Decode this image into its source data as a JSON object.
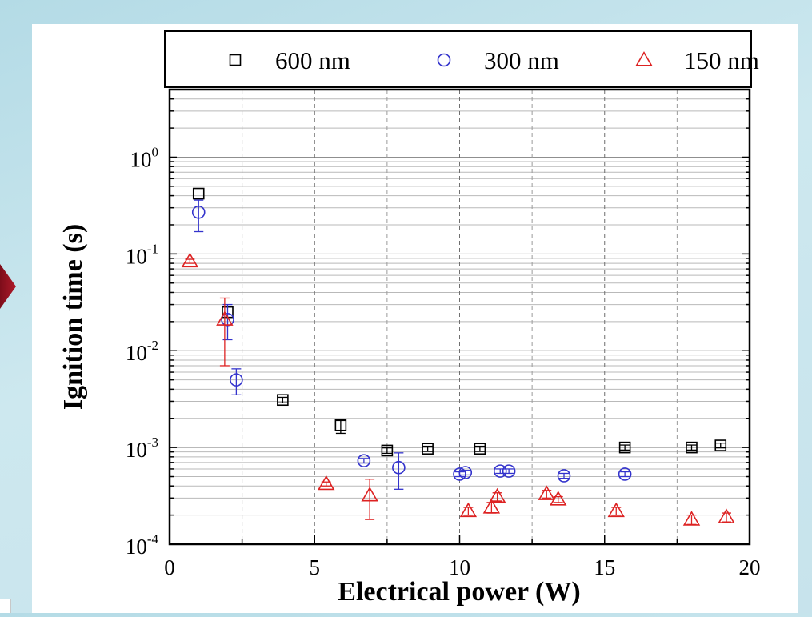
{
  "chart_data": {
    "type": "scatter",
    "xlabel": "Electrical power (W)",
    "ylabel": "Ignition time (s)",
    "xlim": [
      0,
      20
    ],
    "ylim": [
      0.0001,
      5
    ],
    "yscale": "log",
    "xticks": [
      "0",
      "5",
      "10",
      "15",
      "20"
    ],
    "yticks": [
      {
        "base": "10",
        "exp": "-4"
      },
      {
        "base": "10",
        "exp": "-3"
      },
      {
        "base": "10",
        "exp": "-2"
      },
      {
        "base": "10",
        "exp": "-1"
      },
      {
        "base": "10",
        "exp": "0"
      }
    ],
    "grid": true,
    "legend_position": "top",
    "series": [
      {
        "name": "600 nm",
        "marker": "square",
        "color": "#000000",
        "points": [
          {
            "x": 1.0,
            "y": 0.42,
            "lo": 0.42,
            "hi": 0.42
          },
          {
            "x": 2.0,
            "y": 0.025,
            "lo": 0.025,
            "hi": 0.025
          },
          {
            "x": 3.9,
            "y": 0.0031,
            "lo": 0.0029,
            "hi": 0.0033
          },
          {
            "x": 5.9,
            "y": 0.0017,
            "lo": 0.0014,
            "hi": 0.0019
          },
          {
            "x": 7.5,
            "y": 0.00093,
            "lo": 0.00087,
            "hi": 0.00099
          },
          {
            "x": 8.9,
            "y": 0.00097,
            "lo": 0.00091,
            "hi": 0.00103
          },
          {
            "x": 10.7,
            "y": 0.00097,
            "lo": 0.00091,
            "hi": 0.00103
          },
          {
            "x": 15.7,
            "y": 0.001,
            "lo": 0.00094,
            "hi": 0.00106
          },
          {
            "x": 18.0,
            "y": 0.001,
            "lo": 0.00094,
            "hi": 0.00106
          },
          {
            "x": 19.0,
            "y": 0.00105,
            "lo": 0.00099,
            "hi": 0.00111
          }
        ]
      },
      {
        "name": "300 nm",
        "marker": "circle",
        "color": "#3333cc",
        "points": [
          {
            "x": 1.0,
            "y": 0.27,
            "lo": 0.17,
            "hi": 0.36
          },
          {
            "x": 2.0,
            "y": 0.021,
            "lo": 0.013,
            "hi": 0.03
          },
          {
            "x": 2.3,
            "y": 0.005,
            "lo": 0.0035,
            "hi": 0.0065
          },
          {
            "x": 6.7,
            "y": 0.00073,
            "lo": 0.00069,
            "hi": 0.00077
          },
          {
            "x": 7.9,
            "y": 0.00062,
            "lo": 0.00037,
            "hi": 0.00088
          },
          {
            "x": 10.0,
            "y": 0.00053,
            "lo": 0.0005,
            "hi": 0.00056
          },
          {
            "x": 10.2,
            "y": 0.00055,
            "lo": 0.00052,
            "hi": 0.00058
          },
          {
            "x": 11.4,
            "y": 0.00057,
            "lo": 0.00054,
            "hi": 0.0006
          },
          {
            "x": 11.7,
            "y": 0.00057,
            "lo": 0.00054,
            "hi": 0.0006
          },
          {
            "x": 13.6,
            "y": 0.00051,
            "lo": 0.00048,
            "hi": 0.00054
          },
          {
            "x": 15.7,
            "y": 0.00053,
            "lo": 0.0005,
            "hi": 0.00056
          }
        ]
      },
      {
        "name": "150 nm",
        "marker": "triangle",
        "color": "#dd2222",
        "points": [
          {
            "x": 0.7,
            "y": 0.084,
            "lo": 0.08,
            "hi": 0.088
          },
          {
            "x": 1.9,
            "y": 0.021,
            "lo": 0.007,
            "hi": 0.035
          },
          {
            "x": 5.4,
            "y": 0.00042,
            "lo": 0.0004,
            "hi": 0.00044
          },
          {
            "x": 6.9,
            "y": 0.00032,
            "lo": 0.00018,
            "hi": 0.00047
          },
          {
            "x": 10.3,
            "y": 0.00022,
            "lo": 0.0002,
            "hi": 0.00024
          },
          {
            "x": 11.1,
            "y": 0.00024,
            "lo": 0.00021,
            "hi": 0.00027
          },
          {
            "x": 11.3,
            "y": 0.00031,
            "lo": 0.00028,
            "hi": 0.00034
          },
          {
            "x": 13.0,
            "y": 0.00033,
            "lo": 0.0003,
            "hi": 0.00036
          },
          {
            "x": 13.4,
            "y": 0.00029,
            "lo": 0.00027,
            "hi": 0.00031
          },
          {
            "x": 15.4,
            "y": 0.00022,
            "lo": 0.0002,
            "hi": 0.00024
          },
          {
            "x": 18.0,
            "y": 0.00018,
            "lo": 0.00016,
            "hi": 0.0002
          },
          {
            "x": 19.2,
            "y": 0.00019,
            "lo": 0.00017,
            "hi": 0.00021
          }
        ]
      }
    ]
  }
}
